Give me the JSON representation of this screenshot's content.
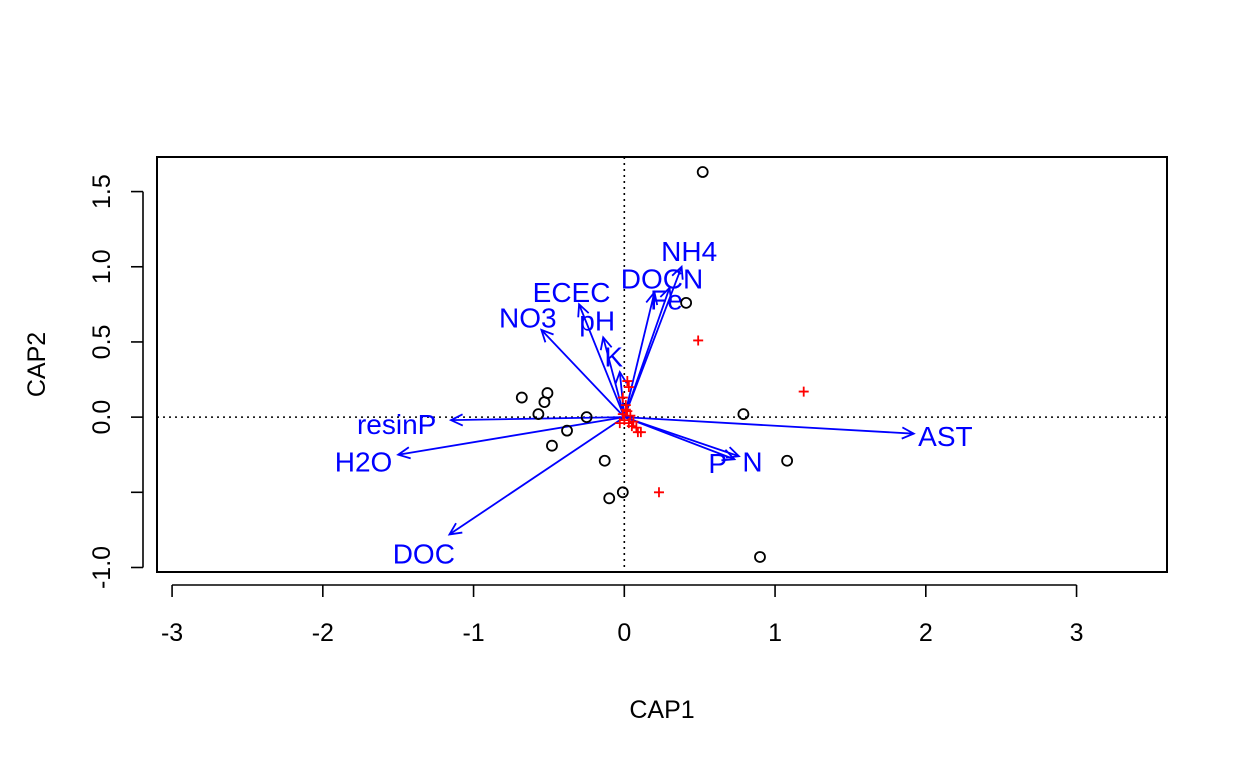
{
  "chart_data": {
    "type": "scatter",
    "subtype": "CAP ordination biplot",
    "xlabel": "CAP1",
    "ylabel": "CAP2",
    "xlim": [
      -3.1,
      3.6
    ],
    "ylim": [
      -1.03,
      1.73
    ],
    "x_ticks": [
      {
        "value": -3,
        "label": "-3"
      },
      {
        "value": -2,
        "label": "-2"
      },
      {
        "value": -1,
        "label": "-1"
      },
      {
        "value": 0,
        "label": "0"
      },
      {
        "value": 1,
        "label": "1"
      },
      {
        "value": 2,
        "label": "2"
      },
      {
        "value": 3,
        "label": "3"
      }
    ],
    "y_ticks": [
      {
        "value": -1.0,
        "label": "-1.0"
      },
      {
        "value": -0.5,
        "label": ""
      },
      {
        "value": 0.0,
        "label": "0.0"
      },
      {
        "value": 0.5,
        "label": "0.5"
      },
      {
        "value": 1.0,
        "label": "1.0"
      },
      {
        "value": 1.5,
        "label": "1.5"
      }
    ],
    "reference_lines": {
      "x": 0,
      "y": 0,
      "style": "dotted"
    },
    "grid": false,
    "colors": {
      "sites": "#000000",
      "species": "#ff0000",
      "vectors": "#0000ff"
    },
    "sites": [
      {
        "x": 0.52,
        "y": 1.63
      },
      {
        "x": 0.41,
        "y": 0.76
      },
      {
        "x": -0.68,
        "y": 0.13
      },
      {
        "x": -0.51,
        "y": 0.16
      },
      {
        "x": -0.53,
        "y": 0.1
      },
      {
        "x": -0.57,
        "y": 0.02
      },
      {
        "x": -0.25,
        "y": 0.0
      },
      {
        "x": -0.38,
        "y": -0.09
      },
      {
        "x": -0.48,
        "y": -0.19
      },
      {
        "x": 0.79,
        "y": 0.02
      },
      {
        "x": -0.13,
        "y": -0.29
      },
      {
        "x": 1.08,
        "y": -0.29
      },
      {
        "x": -0.01,
        "y": -0.5
      },
      {
        "x": -0.1,
        "y": -0.54
      },
      {
        "x": 0.9,
        "y": -0.93
      }
    ],
    "species": [
      {
        "x": 0.49,
        "y": 0.51
      },
      {
        "x": 1.19,
        "y": 0.17
      },
      {
        "x": 0.23,
        "y": -0.5
      },
      {
        "x": 0.02,
        "y": 0.24
      },
      {
        "x": 0.03,
        "y": 0.2
      },
      {
        "x": -0.01,
        "y": 0.13
      },
      {
        "x": 0.01,
        "y": 0.08
      },
      {
        "x": 0.02,
        "y": 0.04
      },
      {
        "x": -0.01,
        "y": 0.02
      },
      {
        "x": 0.04,
        "y": 0.01
      },
      {
        "x": 0.0,
        "y": -0.02
      },
      {
        "x": 0.03,
        "y": -0.04
      },
      {
        "x": -0.03,
        "y": -0.04
      },
      {
        "x": 0.05,
        "y": -0.06
      },
      {
        "x": 0.08,
        "y": -0.07
      },
      {
        "x": 0.09,
        "y": -0.1
      },
      {
        "x": 0.11,
        "y": -0.1
      },
      {
        "x": 0.06,
        "y": -0.03
      },
      {
        "x": 0.01,
        "y": 0.05
      }
    ],
    "vectors": [
      {
        "name": "NH4",
        "x": 0.38,
        "y": 1.0,
        "label_x": 0.43,
        "label_y": 1.1
      },
      {
        "name": "DOCN",
        "x": 0.3,
        "y": 0.86,
        "label_x": 0.25,
        "label_y": 0.92
      },
      {
        "name": "Fe",
        "x": 0.2,
        "y": 0.83,
        "label_x": 0.28,
        "label_y": 0.78
      },
      {
        "name": "ECEC",
        "x": -0.3,
        "y": 0.75,
        "label_x": -0.35,
        "label_y": 0.83
      },
      {
        "name": "NO3",
        "x": -0.55,
        "y": 0.58,
        "label_x": -0.64,
        "label_y": 0.66
      },
      {
        "name": "pH",
        "x": -0.14,
        "y": 0.53,
        "label_x": -0.18,
        "label_y": 0.64
      },
      {
        "name": "K",
        "x": -0.03,
        "y": 0.3,
        "label_x": -0.07,
        "label_y": 0.4
      },
      {
        "name": "resinP",
        "x": -1.15,
        "y": -0.02,
        "label_x": -1.51,
        "label_y": -0.05
      },
      {
        "name": "H2O",
        "x": -1.5,
        "y": -0.25,
        "label_x": -1.73,
        "label_y": -0.3
      },
      {
        "name": "DOC",
        "x": -1.16,
        "y": -0.78,
        "label_x": -1.33,
        "label_y": -0.91
      },
      {
        "name": "AST",
        "x": 1.92,
        "y": -0.11,
        "label_x": 2.13,
        "label_y": -0.13
      },
      {
        "name": "P",
        "x": 0.73,
        "y": -0.28,
        "label_x": 0.62,
        "label_y": -0.31
      },
      {
        "name": "N",
        "x": 0.76,
        "y": -0.26,
        "label_x": 0.85,
        "label_y": -0.3
      }
    ]
  }
}
